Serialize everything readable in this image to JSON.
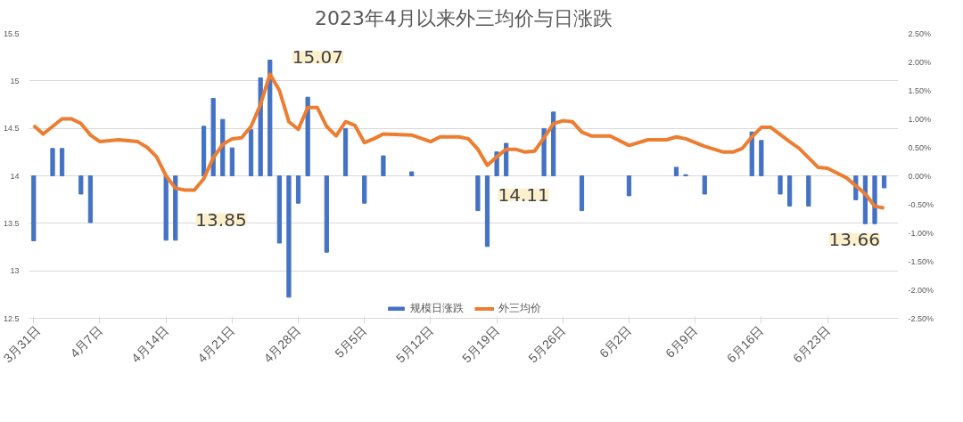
{
  "chart_data": {
    "type": "bar",
    "title": "2023年4月以来外三均价与日涨跌",
    "xlim": [
      "2023-03-30T12:00",
      "2023-06-30T12:00"
    ],
    "xticks": [
      {
        "value": "2023-03-31",
        "label": "3月31日"
      },
      {
        "value": "2023-04-07",
        "label": "4月7日"
      },
      {
        "value": "2023-04-14",
        "label": "4月14日"
      },
      {
        "value": "2023-04-21",
        "label": "4月21日"
      },
      {
        "value": "2023-04-28",
        "label": "4月28日"
      },
      {
        "value": "2023-05-05",
        "label": "5月5日"
      },
      {
        "value": "2023-05-12",
        "label": "5月12日"
      },
      {
        "value": "2023-05-19",
        "label": "5月19日"
      },
      {
        "value": "2023-05-26",
        "label": "5月26日"
      },
      {
        "value": "2023-06-02",
        "label": "6月2日"
      },
      {
        "value": "2023-06-09",
        "label": "6月9日"
      },
      {
        "value": "2023-06-16",
        "label": "6月16日"
      },
      {
        "value": "2023-06-23",
        "label": "6月23日"
      }
    ],
    "ylim": [
      12.5,
      15.5
    ],
    "yticks": [
      12.5,
      13,
      13.5,
      14,
      14.5,
      15,
      15.5
    ],
    "y2lim": [
      -2.5,
      2.5
    ],
    "y2ticks": [
      {
        "value": -2.5,
        "label": "-2.50%"
      },
      {
        "value": -2,
        "label": "-2.00%"
      },
      {
        "value": -1.5,
        "label": "-1.50%"
      },
      {
        "value": -1,
        "label": "-1.00%"
      },
      {
        "value": -0.5,
        "label": "-0.50%"
      },
      {
        "value": 0,
        "label": "0.00%"
      },
      {
        "value": 0.5,
        "label": "0.50%"
      },
      {
        "value": 1,
        "label": "1.00%"
      },
      {
        "value": 1.5,
        "label": "1.50%"
      },
      {
        "value": 2,
        "label": "2.00%"
      },
      {
        "value": 2.5,
        "label": "2.50%"
      }
    ],
    "grid": "y",
    "legend": "bottom",
    "series": [
      {
        "name": "规模日涨跌",
        "axis": "y2",
        "color": "#4472c4",
        "x": [
          "2023-03-31",
          "2023-04-02",
          "2023-04-03",
          "2023-04-05",
          "2023-04-06",
          "2023-04-14",
          "2023-04-15",
          "2023-04-18",
          "2023-04-19",
          "2023-04-20",
          "2023-04-21",
          "2023-04-23",
          "2023-04-24",
          "2023-04-25",
          "2023-04-26",
          "2023-04-27",
          "2023-04-28",
          "2023-04-29",
          "2023-05-01",
          "2023-05-03",
          "2023-05-05",
          "2023-05-07",
          "2023-05-10",
          "2023-05-17",
          "2023-05-18",
          "2023-05-19",
          "2023-05-20",
          "2023-05-24",
          "2023-05-25",
          "2023-05-28",
          "2023-06-02",
          "2023-06-07",
          "2023-06-08",
          "2023-06-10",
          "2023-06-15",
          "2023-06-16",
          "2023-06-18",
          "2023-06-19",
          "2023-06-21",
          "2023-06-26",
          "2023-06-27",
          "2023-06-28",
          "2023-06-29"
        ],
        "values": [
          -1.14,
          0.48,
          0.48,
          -0.32,
          -0.82,
          -1.13,
          -1.13,
          0.87,
          1.36,
          0.99,
          0.49,
          0.81,
          1.72,
          2.03,
          -1.18,
          -2.13,
          -0.48,
          1.38,
          -1.34,
          0.83,
          -0.48,
          0.35,
          0.07,
          -0.61,
          -1.24,
          0.42,
          0.57,
          0.83,
          1.12,
          -0.61,
          -0.35,
          0.15,
          0.02,
          -0.32,
          0.77,
          0.62,
          -0.32,
          -0.53,
          -0.53,
          -0.42,
          -0.84,
          -0.84,
          -0.21
        ]
      },
      {
        "name": "外三均价",
        "type": "line",
        "color": "#ed7d31",
        "x": [
          "2023-03-31",
          "2023-04-01",
          "2023-04-03",
          "2023-04-04",
          "2023-04-05",
          "2023-04-06",
          "2023-04-07",
          "2023-04-09",
          "2023-04-11",
          "2023-04-12",
          "2023-04-13",
          "2023-04-14",
          "2023-04-15",
          "2023-04-16",
          "2023-04-17",
          "2023-04-18",
          "2023-04-19",
          "2023-04-20",
          "2023-04-21",
          "2023-04-22",
          "2023-04-23",
          "2023-04-24",
          "2023-04-25",
          "2023-04-26",
          "2023-04-27",
          "2023-04-28",
          "2023-04-29",
          "2023-04-30",
          "2023-05-01",
          "2023-05-02",
          "2023-05-03",
          "2023-05-04",
          "2023-05-05",
          "2023-05-06",
          "2023-05-07",
          "2023-05-10",
          "2023-05-12",
          "2023-05-13",
          "2023-05-15",
          "2023-05-16",
          "2023-05-17",
          "2023-05-18",
          "2023-05-19",
          "2023-05-20",
          "2023-05-21",
          "2023-05-22",
          "2023-05-23",
          "2023-05-24",
          "2023-05-25",
          "2023-05-26",
          "2023-05-27",
          "2023-05-28",
          "2023-05-29",
          "2023-05-31",
          "2023-06-02",
          "2023-06-04",
          "2023-06-06",
          "2023-06-07",
          "2023-06-08",
          "2023-06-10",
          "2023-06-12",
          "2023-06-13",
          "2023-06-14",
          "2023-06-15",
          "2023-06-16",
          "2023-06-17",
          "2023-06-19",
          "2023-06-20",
          "2023-06-22",
          "2023-06-23",
          "2023-06-25",
          "2023-06-27",
          "2023-06-28",
          "2023-06-29"
        ],
        "values": [
          14.53,
          14.44,
          14.6,
          14.6,
          14.55,
          14.43,
          14.36,
          14.38,
          14.36,
          14.3,
          14.2,
          14.0,
          13.87,
          13.85,
          13.85,
          13.97,
          14.19,
          14.33,
          14.39,
          14.4,
          14.52,
          14.75,
          15.07,
          14.9,
          14.57,
          14.49,
          14.72,
          14.72,
          14.52,
          14.42,
          14.57,
          14.53,
          14.35,
          14.39,
          14.44,
          14.43,
          14.36,
          14.41,
          14.41,
          14.39,
          14.28,
          14.11,
          14.2,
          14.28,
          14.28,
          14.25,
          14.26,
          14.4,
          14.55,
          14.58,
          14.57,
          14.46,
          14.42,
          14.42,
          14.32,
          14.38,
          14.38,
          14.41,
          14.39,
          14.31,
          14.25,
          14.25,
          14.29,
          14.41,
          14.51,
          14.51,
          14.36,
          14.29,
          14.09,
          14.08,
          13.98,
          13.81,
          13.68,
          13.66
        ]
      }
    ],
    "annotations": [
      {
        "text": "15.07",
        "x": "2023-04-25",
        "y": 15.07
      },
      {
        "text": "13.85",
        "x": "2023-04-16",
        "y": 13.85
      },
      {
        "text": "14.11",
        "x": "2023-05-18",
        "y": 14.11
      },
      {
        "text": "13.66",
        "x": "2023-06-29",
        "y": 13.66
      }
    ]
  }
}
